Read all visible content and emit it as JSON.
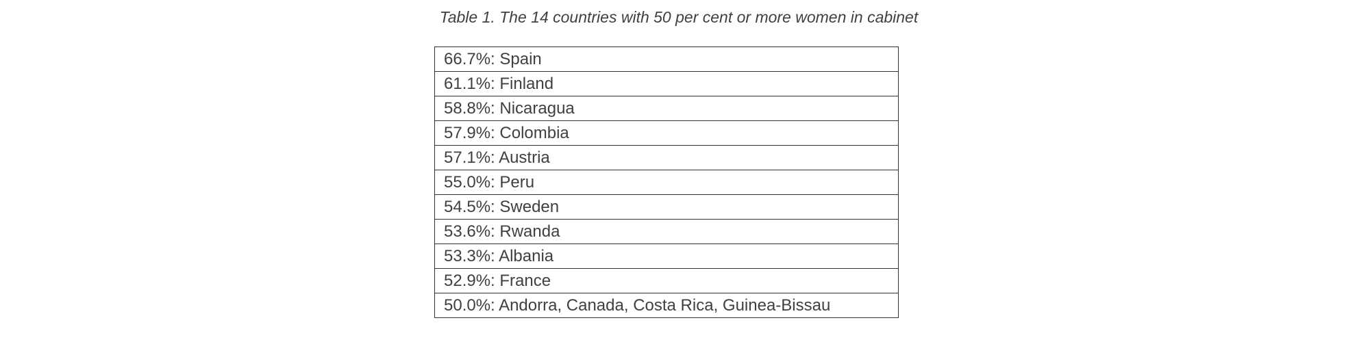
{
  "caption": "Table 1. The 14 countries with 50 per cent or more women in cabinet",
  "table": {
    "rows": [
      "66.7%: Spain",
      "61.1%: Finland",
      "58.8%: Nicaragua",
      "57.9%: Colombia",
      "57.1%: Austria",
      "55.0%: Peru",
      "54.5%: Sweden",
      "53.6%: Rwanda",
      "53.3%: Albania",
      "52.9%: France",
      "50.0%: Andorra, Canada, Costa Rica, Guinea-Bissau"
    ]
  }
}
